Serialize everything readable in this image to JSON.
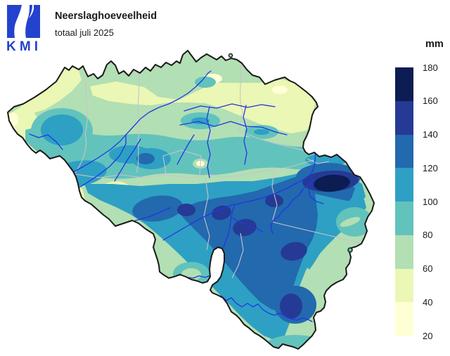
{
  "header": {
    "logo_text": "KMI",
    "title": "Neerslaghoeveelheid",
    "subtitle": "totaal juli 2025"
  },
  "legend": {
    "unit": "mm",
    "ticks": [
      "180",
      "160",
      "140",
      "120",
      "100",
      "80",
      "60",
      "40",
      "20"
    ],
    "bands": [
      {
        "range": "160-180",
        "color": "#0B1D52"
      },
      {
        "range": "140-160",
        "color": "#253A94"
      },
      {
        "range": "120-140",
        "color": "#2269AE"
      },
      {
        "range": "100-120",
        "color": "#2EA0C4"
      },
      {
        "range": "80-100",
        "color": "#62C3BC"
      },
      {
        "range": "60-80",
        "color": "#B2DFB3"
      },
      {
        "range": "40-60",
        "color": "#EBF7B4"
      },
      {
        "range": "20-40",
        "color": "#FFFFD5"
      }
    ]
  },
  "map": {
    "region": "Belgium",
    "colors": {
      "country_border": "#1A1A1A",
      "province_border": "#CBC3CA",
      "river": "#2335E3",
      "logo_blue": "#2343CE",
      "background": "#FFFFFF"
    }
  }
}
